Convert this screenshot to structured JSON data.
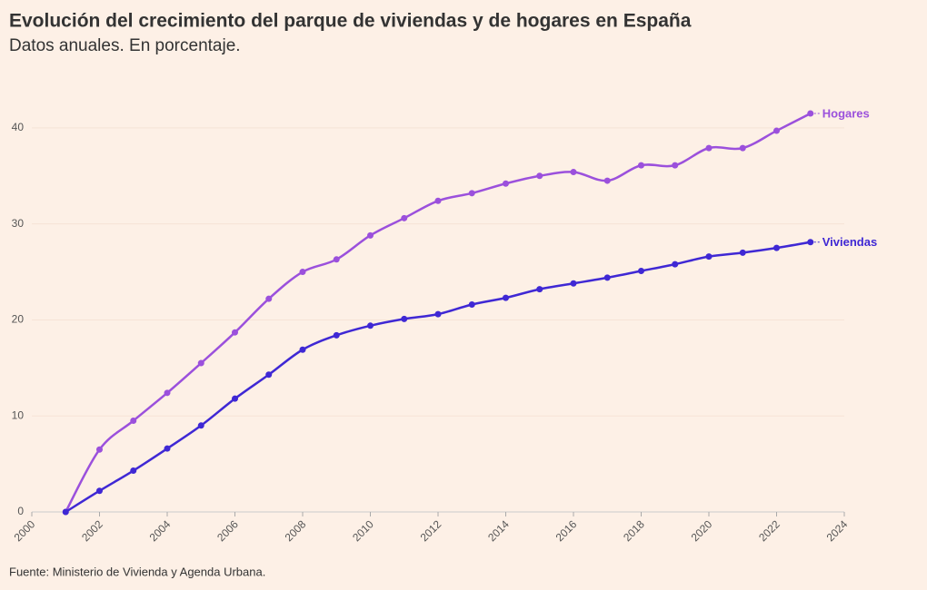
{
  "chart_data": {
    "type": "line",
    "title": "Evolución del crecimiento del parque de viviendas y de hogares en España",
    "subtitle": "Datos anuales. En porcentaje.",
    "source": "Fuente: Ministerio de Vivienda y Agenda Urbana.",
    "x": [
      2001,
      2002,
      2003,
      2004,
      2005,
      2006,
      2007,
      2008,
      2009,
      2010,
      2011,
      2012,
      2013,
      2014,
      2015,
      2016,
      2017,
      2018,
      2019,
      2020,
      2021,
      2022,
      2023
    ],
    "series": [
      {
        "name": "Hogares",
        "color": "#9b50dc",
        "values": [
          0,
          6.5,
          9.5,
          12.4,
          15.5,
          18.7,
          22.2,
          25.0,
          26.3,
          28.8,
          30.6,
          32.4,
          33.2,
          34.2,
          35.0,
          35.4,
          34.5,
          36.1,
          36.1,
          37.9,
          37.9,
          39.7,
          41.5
        ]
      },
      {
        "name": "Viviendas",
        "color": "#3f28d4",
        "values": [
          0,
          2.2,
          4.3,
          6.6,
          9.0,
          11.8,
          14.3,
          16.9,
          18.4,
          19.4,
          20.1,
          20.6,
          21.6,
          22.3,
          23.2,
          23.8,
          24.4,
          25.1,
          25.8,
          26.6,
          27.0,
          27.5,
          28.1
        ]
      }
    ],
    "xlim": [
      2000,
      2024
    ],
    "xticks": [
      2000,
      2002,
      2004,
      2006,
      2008,
      2010,
      2012,
      2014,
      2016,
      2018,
      2020,
      2022,
      2024
    ],
    "ylim": [
      0,
      45
    ],
    "yticks": [
      0,
      10,
      20,
      30,
      40
    ],
    "grid": true
  }
}
